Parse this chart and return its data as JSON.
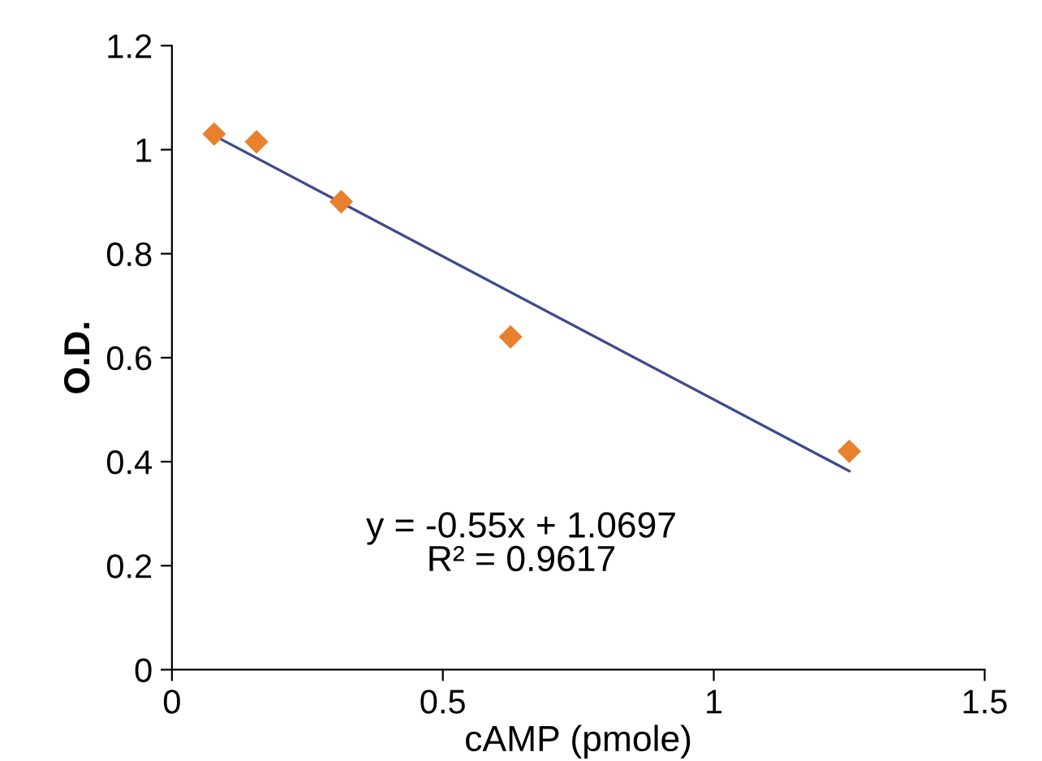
{
  "chart_data": {
    "type": "scatter",
    "xlabel": "cAMP (pmole)",
    "ylabel": "O.D.",
    "series": [
      {
        "color": "#e8802e",
        "marker": "diamond",
        "x": [
          0.078,
          0.156,
          0.3125,
          0.625,
          1.25
        ],
        "values": [
          1.03,
          1.015,
          0.9,
          0.64,
          0.42
        ]
      },
      {
        "type": "line",
        "color": "#3f4c8c",
        "marker": "none",
        "x": [
          0.078,
          1.25
        ],
        "values": [
          1.027,
          0.382
        ]
      }
    ],
    "annotations": [
      "y = -0.55x + 1.0697\nR² = 0.9617"
    ],
    "xlim": [
      0,
      1.5
    ],
    "xticks": [
      0,
      0.5,
      1,
      1.5
    ],
    "ylim": [
      0,
      1.2
    ],
    "yticks": [
      0,
      0.2,
      0.4,
      0.6,
      0.8,
      1,
      1.2
    ],
    "grid": false,
    "legend": false
  }
}
